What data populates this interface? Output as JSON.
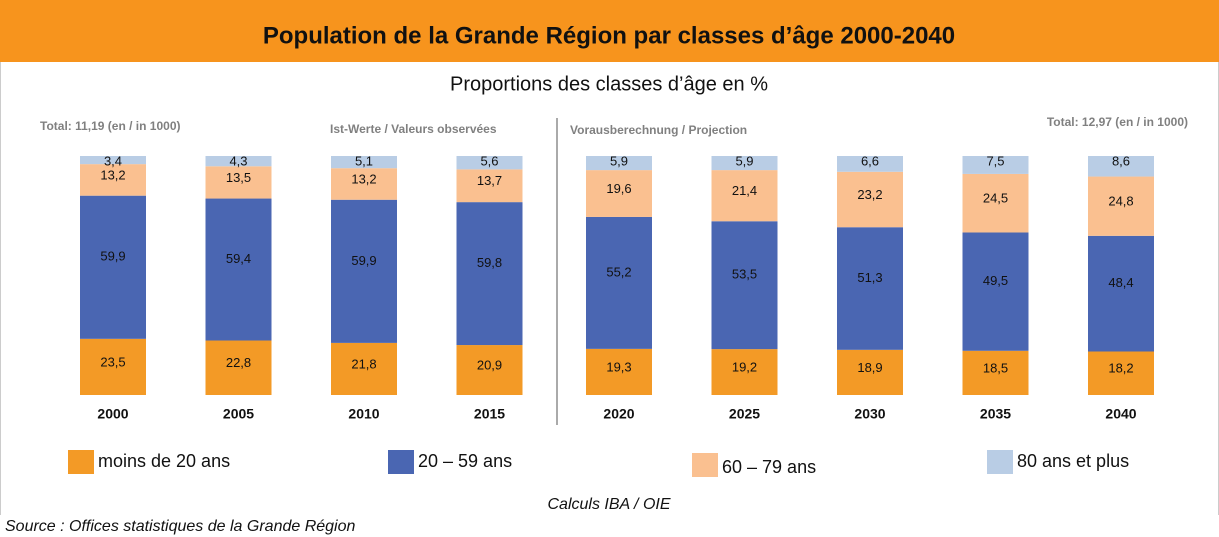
{
  "chart_data": {
    "type": "stacked_bar",
    "title": "Population de la Grande Région par classes d’âge 2000-2040",
    "subtitle": "Proportions des classes d’âge en %",
    "annotations": [
      "Total: 11,19 (en / in 1000)",
      "Ist-Werte / Valeurs observées",
      "Vorausberechnung / Projection",
      "Total: 12,97 (en / in 1000)"
    ],
    "categories": [
      "2000",
      "2005",
      "2010",
      "2015",
      "2020",
      "2025",
      "2030",
      "2035",
      "2040"
    ],
    "ylim": [
      0,
      100
    ],
    "series": [
      {
        "name": "moins de 20 ans",
        "color": "#f39a26",
        "values": [
          23.5,
          22.8,
          21.8,
          20.9,
          19.3,
          19.2,
          18.9,
          18.5,
          18.2
        ],
        "value_labels": [
          "23,5",
          "22,8",
          "21,8",
          "20,9",
          "19,3",
          "19,2",
          "18,9",
          "18,5",
          "18,2"
        ]
      },
      {
        "name": "20 – 59 ans",
        "color": "#4a66b2",
        "values": [
          59.9,
          59.4,
          59.9,
          59.8,
          55.2,
          53.5,
          51.3,
          49.5,
          48.4
        ],
        "value_labels": [
          "59,9",
          "59,4",
          "59,9",
          "59,8",
          "55,2",
          "53,5",
          "51,3",
          "49,5",
          "48,4"
        ]
      },
      {
        "name": "60 – 79 ans",
        "color": "#fac090",
        "values": [
          13.2,
          13.5,
          13.2,
          13.7,
          19.6,
          21.4,
          23.2,
          24.5,
          24.8
        ],
        "value_labels": [
          "13,2",
          "13,5",
          "13,2",
          "13,7",
          "19,6",
          "21,4",
          "23,2",
          "24,5",
          "24,8"
        ]
      },
      {
        "name": "80 ans et plus",
        "color": "#b9cde5",
        "values": [
          3.4,
          4.3,
          5.1,
          5.6,
          5.9,
          5.9,
          6.6,
          7.5,
          8.6
        ],
        "value_labels": [
          "3,4",
          "4,3",
          "5,1",
          "5,6",
          "5,9",
          "5,9",
          "6,6",
          "7,5",
          "8,6"
        ]
      }
    ],
    "notes": [
      "Calculs IBA / OIE",
      "Source : Offices statistiques de la Grande Région"
    ]
  }
}
